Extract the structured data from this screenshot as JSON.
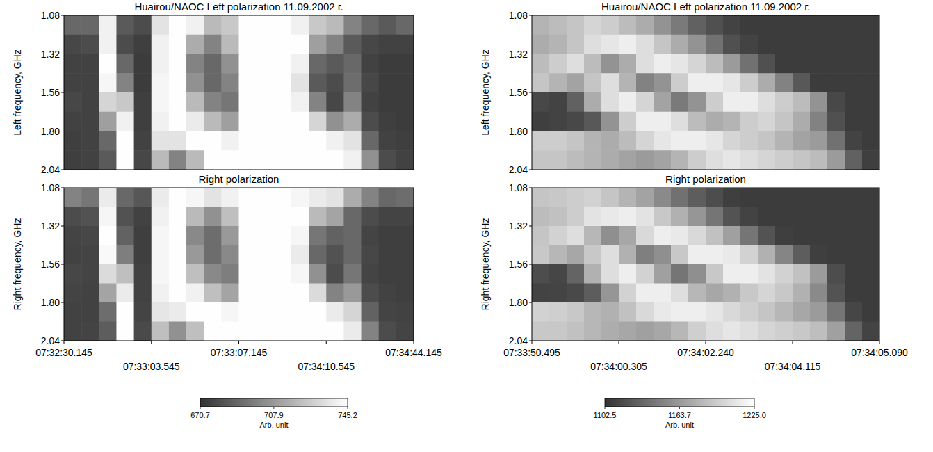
{
  "chart_data": [
    {
      "type": "heatmap",
      "title": "Huairou/NAOC Left polarization 11.09.2002 г.",
      "y_label": "Left frequency, GHz",
      "xlim": [
        0,
        4
      ],
      "ylim": [
        2.04,
        1.08
      ],
      "yticks": [
        1.08,
        1.32,
        1.56,
        {
          "value": 1.8,
          "label": "1.80"
        },
        2.04
      ],
      "tick_labels": "y",
      "cells": [
        [
          690,
          690,
          740,
          685,
          680,
          735,
          745,
          740,
          720,
          725,
          745,
          745,
          745,
          740,
          725,
          720,
          700,
          690,
          685,
          690
        ],
        [
          678,
          680,
          740,
          680,
          675,
          740,
          745,
          715,
          700,
          720,
          745,
          745,
          745,
          745,
          710,
          700,
          685,
          678,
          676,
          676
        ],
        [
          676,
          676,
          745,
          690,
          674,
          740,
          745,
          700,
          690,
          705,
          745,
          745,
          745,
          740,
          690,
          685,
          690,
          676,
          674,
          674
        ],
        [
          676,
          676,
          742,
          700,
          674,
          742,
          745,
          705,
          690,
          700,
          745,
          745,
          745,
          735,
          685,
          680,
          692,
          678,
          674,
          674
        ],
        [
          678,
          676,
          730,
          725,
          675,
          742,
          745,
          720,
          700,
          695,
          745,
          745,
          745,
          740,
          700,
          678,
          700,
          676,
          674,
          674
        ],
        [
          676,
          676,
          710,
          740,
          675,
          740,
          745,
          738,
          720,
          710,
          745,
          745,
          745,
          745,
          730,
          705,
          715,
          680,
          675,
          674
        ],
        [
          675,
          676,
          690,
          745,
          676,
          735,
          735,
          745,
          745,
          740,
          745,
          745,
          745,
          745,
          745,
          740,
          735,
          690,
          676,
          675
        ],
        [
          675,
          676,
          685,
          745,
          678,
          720,
          700,
          720,
          745,
          745,
          745,
          745,
          745,
          745,
          745,
          745,
          740,
          705,
          680,
          676
        ]
      ]
    },
    {
      "type": "heatmap",
      "title": "Right polarization",
      "y_label": "Right frequency, GHz",
      "xlim": [
        0,
        4
      ],
      "ylim": [
        2.04,
        1.08
      ],
      "yticks": [
        1.08,
        1.32,
        1.56,
        {
          "value": 1.8,
          "label": "1.80"
        },
        2.04
      ],
      "xticks": [
        {
          "value": 0,
          "label": "07:32:30.145"
        },
        {
          "value": 1,
          "label": "07:33:03.545"
        },
        {
          "value": 2,
          "label": "07:33:07.145"
        },
        {
          "value": 3,
          "label": "07:34:10.545"
        },
        {
          "value": 4,
          "label": "07:34:44.145"
        }
      ],
      "cells": [
        [
          700,
          695,
          738,
          690,
          684,
          738,
          745,
          742,
          735,
          740,
          745,
          745,
          745,
          742,
          738,
          735,
          715,
          700,
          690,
          692
        ],
        [
          680,
          682,
          742,
          682,
          676,
          740,
          745,
          720,
          705,
          722,
          745,
          745,
          745,
          745,
          720,
          712,
          690,
          680,
          677,
          677
        ],
        [
          677,
          678,
          745,
          688,
          675,
          742,
          745,
          702,
          692,
          708,
          745,
          745,
          745,
          742,
          695,
          688,
          690,
          677,
          675,
          675
        ],
        [
          676,
          677,
          743,
          698,
          675,
          742,
          745,
          708,
          692,
          702,
          745,
          745,
          745,
          738,
          690,
          682,
          690,
          678,
          675,
          675
        ],
        [
          678,
          677,
          732,
          722,
          676,
          742,
          745,
          722,
          702,
          698,
          745,
          745,
          745,
          742,
          705,
          680,
          695,
          677,
          675,
          675
        ],
        [
          677,
          676,
          712,
          738,
          676,
          740,
          745,
          740,
          722,
          712,
          745,
          745,
          745,
          745,
          732,
          700,
          708,
          680,
          676,
          675
        ],
        [
          676,
          676,
          692,
          745,
          677,
          736,
          738,
          745,
          745,
          742,
          745,
          745,
          745,
          745,
          745,
          738,
          730,
          688,
          677,
          676
        ],
        [
          676,
          677,
          686,
          745,
          679,
          722,
          705,
          722,
          745,
          745,
          745,
          745,
          745,
          745,
          745,
          745,
          738,
          700,
          680,
          677
        ]
      ],
      "colorbar": {
        "range": [
          670.7,
          745.2
        ],
        "ticks": [
          670.7,
          707.9,
          745.2
        ],
        "label": "Arb. unit"
      }
    },
    {
      "type": "heatmap",
      "title": "Huairou/NAOC Left polarization 11.09.2002 г.",
      "y_label": "Left frequency, GHz",
      "xlim": [
        0,
        4
      ],
      "ylim": [
        2.04,
        1.08
      ],
      "yticks": [
        1.08,
        1.32,
        1.56,
        {
          "value": 1.8,
          "label": "1.80"
        },
        2.04
      ],
      "tick_labels": "y",
      "cells": [
        [
          1180,
          1185,
          1190,
          1200,
          1195,
          1185,
          1175,
          1160,
          1145,
          1130,
          1120,
          1112,
          1108,
          1108,
          1108,
          1108,
          1108,
          1108,
          1108,
          1108
        ],
        [
          1175,
          1180,
          1190,
          1205,
          1210,
          1215,
          1205,
          1190,
          1175,
          1160,
          1140,
          1120,
          1112,
          1108,
          1108,
          1108,
          1108,
          1108,
          1108,
          1108
        ],
        [
          1185,
          1195,
          1205,
          1185,
          1160,
          1175,
          1205,
          1215,
          1210,
          1200,
          1185,
          1165,
          1140,
          1120,
          1108,
          1108,
          1108,
          1108,
          1108,
          1108
        ],
        [
          1190,
          1180,
          1170,
          1190,
          1205,
          1180,
          1150,
          1160,
          1195,
          1215,
          1215,
          1210,
          1195,
          1175,
          1150,
          1125,
          1108,
          1108,
          1108,
          1108
        ],
        [
          1115,
          1112,
          1130,
          1175,
          1205,
          1215,
          1200,
          1170,
          1145,
          1160,
          1195,
          1215,
          1215,
          1205,
          1195,
          1185,
          1160,
          1115,
          1108,
          1108
        ],
        [
          1110,
          1112,
          1115,
          1125,
          1160,
          1195,
          1215,
          1215,
          1205,
          1185,
          1175,
          1180,
          1195,
          1200,
          1190,
          1175,
          1150,
          1120,
          1108,
          1108
        ],
        [
          1195,
          1195,
          1190,
          1180,
          1175,
          1185,
          1200,
          1210,
          1215,
          1215,
          1210,
          1200,
          1195,
          1190,
          1180,
          1170,
          1165,
          1140,
          1112,
          1108
        ],
        [
          1190,
          1190,
          1185,
          1180,
          1175,
          1170,
          1165,
          1170,
          1180,
          1195,
          1205,
          1210,
          1205,
          1200,
          1195,
          1190,
          1185,
          1165,
          1130,
          1110
        ]
      ]
    },
    {
      "type": "heatmap",
      "title": "Right polarization",
      "y_label": "Right frequency, GHz",
      "xlim": [
        0,
        4
      ],
      "ylim": [
        2.04,
        1.08
      ],
      "yticks": [
        1.08,
        1.32,
        1.56,
        {
          "value": 1.8,
          "label": "1.80"
        },
        2.04
      ],
      "xticks": [
        {
          "value": 0,
          "label": "07:33:50.495"
        },
        {
          "value": 1,
          "label": "07:34:00.305"
        },
        {
          "value": 2,
          "label": "07:34:02.240"
        },
        {
          "value": 3,
          "label": "07:34:04.115"
        },
        {
          "value": 4,
          "label": "07:34:05.090"
        }
      ],
      "cells": [
        [
          1190,
          1192,
          1195,
          1198,
          1190,
          1180,
          1170,
          1155,
          1140,
          1128,
          1118,
          1110,
          1108,
          1108,
          1108,
          1108,
          1108,
          1108,
          1108,
          1108
        ],
        [
          1185,
          1188,
          1195,
          1208,
          1212,
          1215,
          1208,
          1192,
          1178,
          1162,
          1142,
          1122,
          1112,
          1108,
          1108,
          1108,
          1108,
          1108,
          1108,
          1108
        ],
        [
          1190,
          1198,
          1205,
          1182,
          1158,
          1172,
          1202,
          1215,
          1212,
          1202,
          1188,
          1168,
          1142,
          1122,
          1110,
          1108,
          1108,
          1108,
          1108,
          1108
        ],
        [
          1192,
          1182,
          1172,
          1192,
          1205,
          1178,
          1148,
          1158,
          1192,
          1215,
          1215,
          1212,
          1198,
          1178,
          1152,
          1128,
          1110,
          1108,
          1108,
          1108
        ],
        [
          1118,
          1114,
          1132,
          1178,
          1205,
          1215,
          1198,
          1168,
          1142,
          1158,
          1192,
          1215,
          1215,
          1208,
          1198,
          1188,
          1165,
          1118,
          1108,
          1108
        ],
        [
          1112,
          1113,
          1116,
          1128,
          1162,
          1198,
          1215,
          1215,
          1205,
          1182,
          1172,
          1178,
          1192,
          1200,
          1192,
          1178,
          1155,
          1122,
          1108,
          1108
        ],
        [
          1198,
          1196,
          1192,
          1182,
          1178,
          1188,
          1202,
          1212,
          1215,
          1215,
          1210,
          1202,
          1196,
          1190,
          1182,
          1172,
          1165,
          1142,
          1114,
          1108
        ],
        [
          1192,
          1192,
          1188,
          1182,
          1176,
          1172,
          1168,
          1172,
          1182,
          1196,
          1205,
          1210,
          1206,
          1200,
          1196,
          1192,
          1186,
          1168,
          1132,
          1112
        ]
      ],
      "colorbar": {
        "range": [
          1102.5,
          1225.0
        ],
        "ticks": [
          1102.5,
          1163.7,
          {
            "value": 1225,
            "label": "1225.0"
          }
        ],
        "label": "Arb. unit"
      }
    }
  ]
}
